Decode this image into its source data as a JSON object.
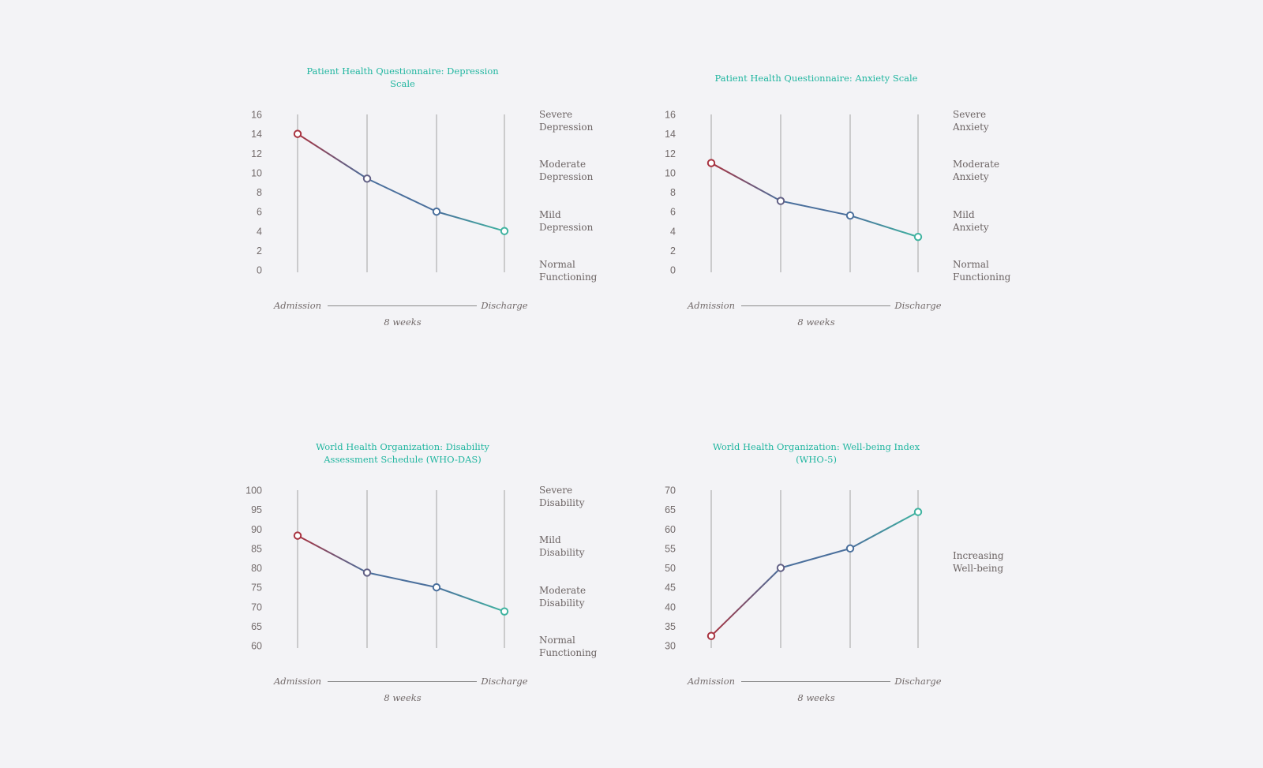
{
  "footer": {
    "start_label": "Admission",
    "end_label": "Discharge",
    "duration_label": "8 weeks"
  },
  "colors": {
    "title": "#21b6a0",
    "start_point": "#a8323f",
    "mid_point": "#4a6f9c",
    "end_point": "#3fb3a0",
    "gridline": "#9a9a9a",
    "text": "#6c6464"
  },
  "chart_data": [
    {
      "type": "line",
      "title": "Patient Health Questionnaire: Depression Scale",
      "x": [
        1,
        2,
        3,
        4
      ],
      "values": [
        14,
        9.4,
        6,
        4
      ],
      "ylim": [
        0,
        16
      ],
      "yticks": [
        0,
        2,
        4,
        6,
        8,
        10,
        12,
        14,
        16
      ],
      "bands": [
        "Severe Depression",
        "Moderate Depression",
        "Mild Depression",
        "Normal Functioning"
      ],
      "grid": true
    },
    {
      "type": "line",
      "title": "Patient Health Questionnaire: Anxiety Scale",
      "x": [
        1,
        2,
        3,
        4
      ],
      "values": [
        11,
        7.1,
        5.6,
        3.4
      ],
      "ylim": [
        0,
        16
      ],
      "yticks": [
        0,
        2,
        4,
        6,
        8,
        10,
        12,
        14,
        16
      ],
      "bands": [
        "Severe Anxiety",
        "Moderate Anxiety",
        "Mild Anxiety",
        "Normal Functioning"
      ],
      "grid": true
    },
    {
      "type": "line",
      "title": "World Health Organization: Disability Assessment Schedule (WHO-DAS)",
      "x": [
        1,
        2,
        3,
        4
      ],
      "values": [
        88.3,
        78.8,
        75,
        68.8
      ],
      "ylim": [
        60,
        100
      ],
      "yticks": [
        60,
        65,
        70,
        75,
        80,
        85,
        90,
        95,
        100
      ],
      "bands": [
        "Severe Disability",
        "Mild Disability",
        "Moderate Disability",
        "Normal Functioning"
      ],
      "grid": true
    },
    {
      "type": "line",
      "title": "World Health Organization: Well-being Index (WHO-5)",
      "x": [
        1,
        2,
        3,
        4
      ],
      "values": [
        32.5,
        50,
        55,
        64.4
      ],
      "ylim": [
        30,
        70
      ],
      "yticks": [
        30,
        35,
        40,
        45,
        50,
        55,
        60,
        65,
        70
      ],
      "bands": [
        "Increasing Well-being"
      ],
      "grid": true
    }
  ]
}
